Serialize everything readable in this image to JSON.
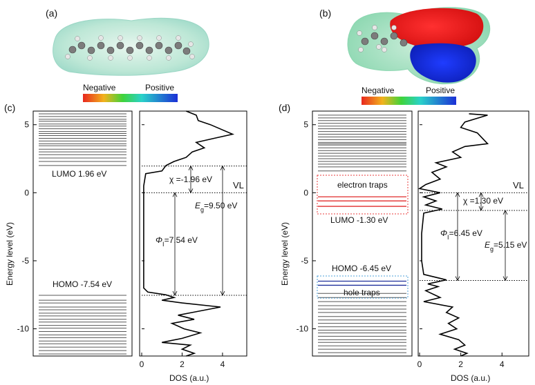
{
  "figure": {
    "panel_a_label": "(a)",
    "panel_b_label": "(b)",
    "panel_c_label": "(c)",
    "panel_d_label": "(d)",
    "colorbar_a": {
      "negative": "Negative",
      "positive": "Positive"
    },
    "colorbar_b": {
      "negative": "Negative",
      "positive": "Positive"
    },
    "colors": {
      "electron_trap_box": "#e8393a",
      "hole_trap_box": "#4a9fd8",
      "electron_trap_lines": "#e02a2a",
      "hole_trap_lines": "#1f2f9a",
      "level_lines": "#555555",
      "dos_curve": "#000000"
    }
  },
  "chart_data": [
    {
      "panel": "c",
      "type": "line",
      "ylabel": "Energy level (eV)",
      "xlabel": "DOS (a.u.)",
      "ylim": [
        -12,
        6
      ],
      "y_ticks": [
        5,
        0,
        -5,
        -10
      ],
      "x_ticks": [
        0,
        2,
        4
      ],
      "lumo_label": "LUMO 1.96 eV",
      "homo_label": "HOMO -7.54 eV",
      "vl_label": "VL",
      "annotations": {
        "chi": "χ =-1.96 eV",
        "phi": "Φ",
        "phi_sub": "I",
        "phi_val": "=7.54 eV",
        "eg": "E",
        "eg_sub": "g",
        "eg_val": "=9.50 eV"
      },
      "lumo": 1.96,
      "homo": -7.54,
      "vl": 0,
      "unoccupied_levels": [
        2.0,
        2.3,
        2.55,
        2.8,
        3.0,
        3.2,
        3.45,
        3.6,
        3.8,
        4.0,
        4.2,
        4.35,
        4.5,
        4.7,
        4.9,
        5.05,
        5.25,
        5.4,
        5.6,
        5.8
      ],
      "occupied_levels": [
        -7.54,
        -7.9,
        -8.1,
        -8.4,
        -8.6,
        -8.85,
        -9.05,
        -9.3,
        -9.5,
        -9.75,
        -9.95,
        -10.2,
        -10.45,
        -10.65,
        -10.9,
        -11.1,
        -11.35,
        -11.6,
        -11.85
      ],
      "dos_curve": [
        [
          2.2,
          6.0
        ],
        [
          2.7,
          5.7
        ],
        [
          2.8,
          5.3
        ],
        [
          3.4,
          5.0
        ],
        [
          4.5,
          4.3
        ],
        [
          3.6,
          4.0
        ],
        [
          2.7,
          3.7
        ],
        [
          3.1,
          3.3
        ],
        [
          2.5,
          3.0
        ],
        [
          2.2,
          2.6
        ],
        [
          1.6,
          2.3
        ],
        [
          1.2,
          2.0
        ],
        [
          1.0,
          1.6
        ],
        [
          0.2,
          1.4
        ],
        [
          0.1,
          0.5
        ],
        [
          0.1,
          -2.0
        ],
        [
          0.1,
          -5.0
        ],
        [
          0.1,
          -7.0
        ],
        [
          0.3,
          -7.3
        ],
        [
          1.2,
          -7.5
        ],
        [
          1.6,
          -7.7
        ],
        [
          1.0,
          -7.9
        ],
        [
          2.0,
          -8.1
        ],
        [
          3.9,
          -8.4
        ],
        [
          2.5,
          -8.8
        ],
        [
          1.8,
          -9.0
        ],
        [
          2.6,
          -9.3
        ],
        [
          1.5,
          -9.6
        ],
        [
          2.1,
          -10.0
        ],
        [
          2.9,
          -10.3
        ],
        [
          2.0,
          -10.7
        ],
        [
          1.0,
          -11.0
        ],
        [
          2.4,
          -11.2
        ],
        [
          2.0,
          -11.5
        ],
        [
          2.6,
          -11.8
        ],
        [
          2.2,
          -12.0
        ]
      ]
    },
    {
      "panel": "d",
      "type": "line",
      "ylabel": "Energy level (eV)",
      "xlabel": "DOS (a.u.)",
      "ylim": [
        -12,
        6
      ],
      "y_ticks": [
        5,
        0,
        -5,
        -10
      ],
      "x_ticks": [
        0,
        2,
        4
      ],
      "lumo_label": "LUMO -1.30 eV",
      "homo_label": "HOMO -6.45 eV",
      "vl_label": "VL",
      "electron_traps_label": "electron traps",
      "hole_traps_label": "hole traps",
      "annotations": {
        "chi": "χ =1.30 eV",
        "phi": "Φ",
        "phi_sub": "I",
        "phi_val": "=6.45 eV",
        "eg": "E",
        "eg_sub": "g",
        "eg_val": "=5.15 eV"
      },
      "lumo": -1.3,
      "homo": -6.45,
      "vl": 0,
      "electron_trap_levels": [
        -0.3,
        -0.6,
        -1.0
      ],
      "hole_trap_levels": [
        -6.5,
        -6.8
      ],
      "unoccupied_levels": [
        1.6,
        1.9,
        2.1,
        2.3,
        2.5,
        2.7,
        2.9,
        3.1,
        3.3,
        3.5,
        3.6,
        3.7,
        3.9,
        4.1,
        4.3,
        4.5,
        4.7,
        4.9,
        5.1,
        5.3,
        5.5,
        5.7
      ],
      "occupied_levels": [
        -7.4,
        -7.7,
        -8.0,
        -8.3,
        -8.55,
        -8.8,
        -9.1,
        -9.35,
        -9.6,
        -9.85,
        -10.1,
        -10.3,
        -10.55,
        -10.8,
        -11.0,
        -11.25,
        -11.5,
        -11.75
      ],
      "dos_curve": [
        [
          2.4,
          5.8
        ],
        [
          3.3,
          5.7
        ],
        [
          2.2,
          5.2
        ],
        [
          2.0,
          4.8
        ],
        [
          2.8,
          4.4
        ],
        [
          3.3,
          3.6
        ],
        [
          2.2,
          3.4
        ],
        [
          1.6,
          3.0
        ],
        [
          2.0,
          2.6
        ],
        [
          0.8,
          2.2
        ],
        [
          1.3,
          1.9
        ],
        [
          0.6,
          1.5
        ],
        [
          1.0,
          1.0
        ],
        [
          0.3,
          0.6
        ],
        [
          0.0,
          0.3
        ],
        [
          1.0,
          0.0
        ],
        [
          0.2,
          -0.3
        ],
        [
          0.8,
          -0.6
        ],
        [
          0.3,
          -0.9
        ],
        [
          1.1,
          -1.2
        ],
        [
          0.2,
          -1.5
        ],
        [
          0.1,
          -3.0
        ],
        [
          0.1,
          -5.0
        ],
        [
          0.2,
          -6.0
        ],
        [
          1.3,
          -6.4
        ],
        [
          0.4,
          -6.7
        ],
        [
          0.9,
          -6.9
        ],
        [
          0.3,
          -7.2
        ],
        [
          1.0,
          -7.7
        ],
        [
          0.2,
          -8.0
        ],
        [
          1.6,
          -8.4
        ],
        [
          1.3,
          -8.8
        ],
        [
          1.9,
          -9.2
        ],
        [
          1.4,
          -9.6
        ],
        [
          1.8,
          -10.0
        ],
        [
          1.0,
          -10.4
        ],
        [
          1.9,
          -10.8
        ],
        [
          2.2,
          -11.2
        ],
        [
          1.7,
          -11.5
        ],
        [
          2.3,
          -11.8
        ],
        [
          2.0,
          -12.0
        ]
      ]
    }
  ]
}
